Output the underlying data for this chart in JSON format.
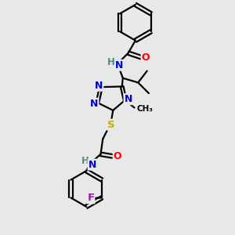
{
  "background_color": "#e8e8e8",
  "atom_colors": {
    "N": "#0000cc",
    "O": "#ff0000",
    "S": "#ccaa00",
    "F": "#cc00cc",
    "C": "#000000",
    "H": "#558888"
  },
  "bond_color": "#000000",
  "bond_width": 1.6,
  "figsize": [
    3.0,
    3.0
  ],
  "dpi": 100,
  "xlim": [
    0,
    10
  ],
  "ylim": [
    0,
    13
  ]
}
